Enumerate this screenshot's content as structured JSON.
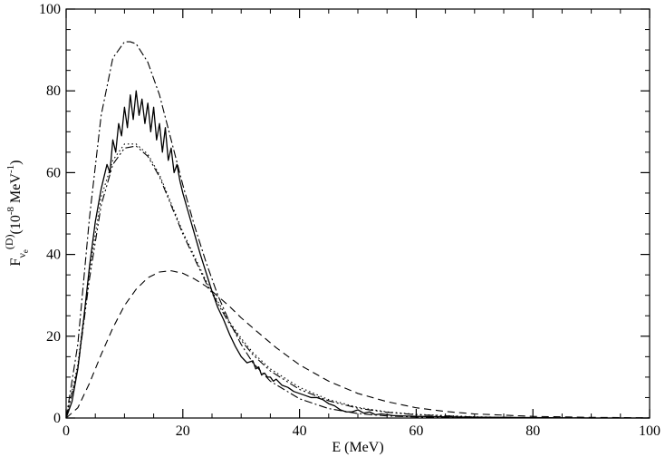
{
  "chart_data": {
    "type": "line",
    "xlabel": "E (MeV)",
    "ylabel": {
      "main": "F",
      "sub": "ν",
      "subsub": "e",
      "sup": "(D)",
      "unit_open": "(10",
      "unit_exp": "-8",
      "unit_mid": " MeV",
      "unit_exp2": "-1",
      "unit_close": ")"
    },
    "xlim": [
      0,
      100
    ],
    "ylim": [
      0,
      100
    ],
    "xticks": [
      0,
      20,
      40,
      60,
      80,
      100
    ],
    "yticks": [
      0,
      20,
      40,
      60,
      80,
      100
    ],
    "xticks_minor_step": 5,
    "yticks_minor_step": 5,
    "grid": false,
    "legend": "none",
    "series": [
      {
        "style": "solid",
        "color": "#000000",
        "x": [
          0,
          1,
          2,
          3,
          4,
          5,
          6,
          7,
          7.5,
          8,
          8.5,
          9,
          9.5,
          10,
          10.5,
          11,
          11.5,
          12,
          12.5,
          13,
          13.5,
          14,
          14.5,
          15,
          15.5,
          16,
          16.5,
          17,
          17.5,
          18,
          18.5,
          19,
          19.5,
          20,
          21,
          22,
          23,
          24,
          25,
          26,
          27,
          28,
          29,
          30,
          31,
          32,
          32.5,
          33,
          33.5,
          34,
          34.5,
          35,
          35.5,
          36,
          37,
          38,
          39,
          40,
          41,
          42,
          43,
          44,
          45,
          46,
          47,
          48,
          49,
          50,
          51,
          52,
          53,
          54,
          56,
          58,
          60,
          65,
          70,
          80,
          90,
          100
        ],
        "y": [
          0,
          4,
          12,
          24,
          37,
          48,
          56,
          62,
          60,
          68,
          65,
          72,
          69,
          76,
          71,
          79,
          73,
          80,
          74,
          78,
          72,
          77,
          70,
          76,
          68,
          72,
          65,
          71,
          63,
          66,
          60,
          62,
          58,
          55,
          50,
          45,
          40,
          35.5,
          31,
          27,
          24,
          20.5,
          17.5,
          15,
          13.5,
          14,
          12,
          12.5,
          10.5,
          11,
          10,
          10,
          9,
          9.5,
          8,
          7.5,
          6.5,
          6,
          5.5,
          5,
          5,
          4.5,
          3.5,
          3,
          2,
          1.5,
          1.5,
          2,
          1.2,
          1.5,
          0.8,
          1,
          0.6,
          0.5,
          0.4,
          0.3,
          0.2,
          0.1,
          0,
          0
        ]
      },
      {
        "style": "dashdot",
        "color": "#000000",
        "x": [
          0,
          2,
          4,
          6,
          8,
          10,
          11,
          12,
          14,
          16,
          18,
          20,
          22,
          24,
          26,
          28,
          30,
          32,
          35,
          40,
          45,
          50,
          55,
          60,
          70,
          80,
          90,
          100
        ],
        "y": [
          0,
          18,
          49,
          74,
          88,
          92,
          92,
          91.5,
          87,
          79,
          68,
          57,
          47,
          38,
          30,
          23.5,
          18,
          13.5,
          9,
          4.7,
          2.3,
          1.1,
          0.5,
          0.25,
          0.05,
          0,
          0,
          0
        ]
      },
      {
        "style": "dashdotdot",
        "color": "#000000",
        "x": [
          0,
          2,
          4,
          6,
          8,
          10,
          12,
          14,
          16,
          18,
          20,
          22,
          24,
          26,
          28,
          30,
          32,
          35,
          40,
          45,
          50,
          55,
          60,
          70,
          80,
          90,
          100
        ],
        "y": [
          0,
          12,
          34,
          52,
          62,
          66,
          66.5,
          64,
          59,
          52,
          45,
          39,
          33,
          28,
          23,
          19,
          15.5,
          11.5,
          7,
          4.2,
          2.4,
          1.4,
          0.8,
          0.25,
          0.05,
          0,
          0
        ]
      },
      {
        "style": "dotted",
        "color": "#000000",
        "x": [
          0,
          2,
          4,
          6,
          8,
          10,
          12,
          14,
          16,
          18,
          20,
          22,
          24,
          26,
          28,
          30,
          32,
          35,
          40,
          45,
          50,
          55,
          60,
          70,
          80,
          90,
          100
        ],
        "y": [
          0,
          13,
          36,
          54,
          63,
          67,
          67,
          64.5,
          59.5,
          52.5,
          45.5,
          39.5,
          33.5,
          28.5,
          23.5,
          19.5,
          16,
          12,
          7.5,
          4.5,
          2.6,
          1.5,
          0.9,
          0.3,
          0.05,
          0,
          0
        ]
      },
      {
        "style": "dashed",
        "color": "#000000",
        "x": [
          0,
          2,
          4,
          6,
          8,
          10,
          12,
          14,
          16,
          18,
          20,
          22,
          24,
          26,
          28,
          30,
          33,
          36,
          40,
          45,
          50,
          55,
          60,
          65,
          70,
          80,
          90,
          100
        ],
        "y": [
          0,
          2.5,
          8.5,
          15.5,
          22,
          27.5,
          31.5,
          34.3,
          35.7,
          36,
          35.4,
          34,
          32.2,
          29.8,
          27.3,
          24.5,
          20.8,
          17.2,
          13,
          9,
          6,
          4,
          2.5,
          1.6,
          1,
          0.4,
          0.15,
          0.05
        ]
      }
    ]
  }
}
